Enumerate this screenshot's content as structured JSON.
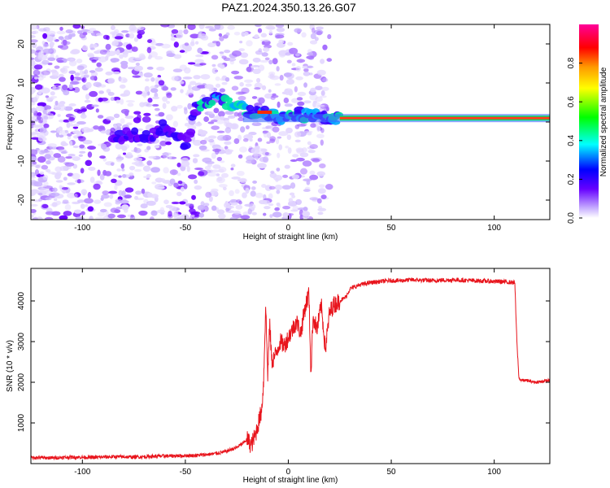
{
  "title": "PAZ1.2024.350.13.26.G07",
  "chart_data": [
    {
      "type": "heatmap",
      "xlabel": "Height of straight line (km)",
      "ylabel": "Frequency (Hz)",
      "xlim": [
        -125,
        127
      ],
      "ylim": [
        -25,
        25
      ],
      "xticks": [
        -100,
        -50,
        0,
        50,
        100
      ],
      "yticks": [
        -20,
        -10,
        0,
        10,
        20
      ],
      "ridge": [
        {
          "x": -82,
          "y": -4
        },
        {
          "x": -75,
          "y": -3
        },
        {
          "x": -70,
          "y": -4
        },
        {
          "x": -65,
          "y": -3
        },
        {
          "x": -60,
          "y": -1
        },
        {
          "x": -55,
          "y": -3
        },
        {
          "x": -50,
          "y": -6
        },
        {
          "x": -45,
          "y": 3
        },
        {
          "x": -40,
          "y": 5
        },
        {
          "x": -35,
          "y": 6
        },
        {
          "x": -30,
          "y": 5
        },
        {
          "x": -25,
          "y": 4
        },
        {
          "x": -20,
          "y": 3
        },
        {
          "x": -15,
          "y": 2.5
        },
        {
          "x": -10,
          "y": 2
        },
        {
          "x": -5,
          "y": 1.5
        },
        {
          "x": 0,
          "y": 1
        },
        {
          "x": 5,
          "y": 2
        },
        {
          "x": 10,
          "y": 1.5
        },
        {
          "x": 15,
          "y": 1.5
        },
        {
          "x": 20,
          "y": 1
        },
        {
          "x": 25,
          "y": 1
        },
        {
          "x": 127,
          "y": 1
        }
      ],
      "colorbar": {
        "label": "Normalized spectral amplitude",
        "ticks": [
          "0.0",
          "0.2",
          "0.4",
          "0.6",
          "0.8"
        ],
        "range": [
          0,
          1
        ],
        "colors": [
          "#ffffff",
          "#6600ff",
          "#0000ff",
          "#00ffff",
          "#00ff00",
          "#ffff00",
          "#ff9900",
          "#ff0000",
          "#ff0099"
        ]
      }
    },
    {
      "type": "line",
      "xlabel": "Height of straight line (km)",
      "ylabel": "SNR (10 * v/v)",
      "xlim": [
        -125,
        127
      ],
      "ylim": [
        0,
        4800
      ],
      "xticks": [
        -100,
        -50,
        0,
        50,
        100
      ],
      "yticks": [
        1000,
        2000,
        3000,
        4000
      ],
      "color": "#e8141c",
      "series": [
        {
          "x": [
            -125,
            -115,
            -105,
            -95,
            -85,
            -75,
            -65,
            -55,
            -45,
            -40,
            -35,
            -30,
            -25,
            -22,
            -20,
            -18,
            -16,
            -15,
            -13,
            -12,
            -11,
            -10,
            -9,
            -8,
            -6,
            -4,
            -2,
            0,
            2,
            4,
            6,
            8,
            10,
            11,
            12,
            14,
            16,
            18,
            20,
            22,
            25,
            28,
            30,
            35,
            40,
            45,
            50,
            55,
            60,
            70,
            80,
            90,
            100,
            105,
            110,
            111,
            112,
            113,
            115,
            120,
            127
          ],
          "y": [
            150,
            140,
            160,
            150,
            170,
            160,
            180,
            190,
            200,
            220,
            250,
            300,
            400,
            500,
            600,
            450,
            700,
            900,
            1300,
            2000,
            3900,
            2200,
            3400,
            2500,
            2700,
            3000,
            2900,
            3100,
            3300,
            3500,
            3200,
            3800,
            4200,
            2200,
            3600,
            3300,
            3900,
            2800,
            3700,
            3900,
            4000,
            4100,
            4300,
            4400,
            4450,
            4480,
            4500,
            4500,
            4520,
            4500,
            4520,
            4500,
            4480,
            4470,
            4450,
            3000,
            2100,
            2050,
            2050,
            2000,
            2050
          ]
        }
      ]
    }
  ]
}
